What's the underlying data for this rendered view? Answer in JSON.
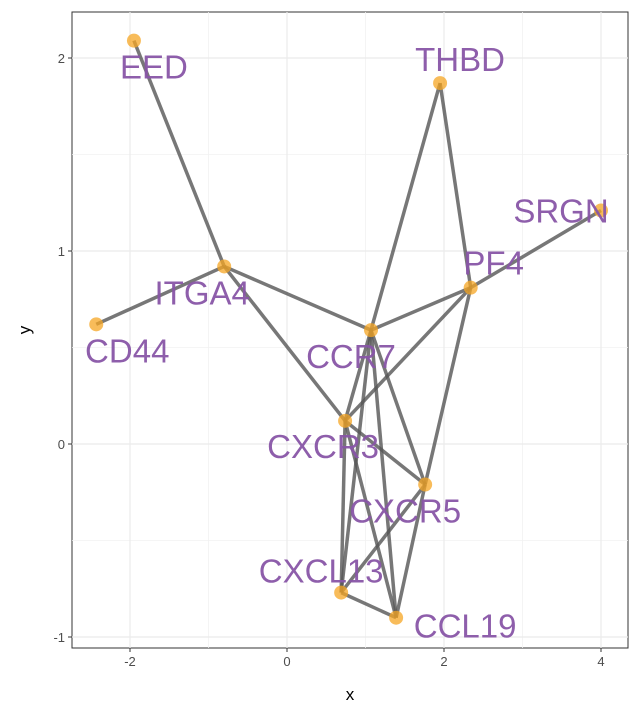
{
  "chart_data": {
    "type": "network",
    "title": "",
    "xlabel": "x",
    "ylabel": "y",
    "xlim": [
      -2.75,
      4.35
    ],
    "ylim": [
      -1.05,
      2.3
    ],
    "xticks": [
      -2,
      0,
      2,
      4
    ],
    "yticks": [
      -1,
      0,
      1,
      2
    ],
    "grid": true,
    "node_color": "#f5a623",
    "label_color": "#8856a7",
    "edge_color": "#555555",
    "nodes": [
      {
        "name": "EED",
        "x": -1.95,
        "y": 2.09
      },
      {
        "name": "THBD",
        "x": 1.95,
        "y": 1.87
      },
      {
        "name": "SRGN",
        "x": 4.0,
        "y": 1.21
      },
      {
        "name": "PF4",
        "x": 2.34,
        "y": 0.81
      },
      {
        "name": "ITGA4",
        "x": -0.8,
        "y": 0.92
      },
      {
        "name": "CD44",
        "x": -2.43,
        "y": 0.62
      },
      {
        "name": "CCR7",
        "x": 1.07,
        "y": 0.59
      },
      {
        "name": "CXCR3",
        "x": 0.74,
        "y": 0.12
      },
      {
        "name": "CXCR5",
        "x": 1.76,
        "y": -0.21
      },
      {
        "name": "CXCL13",
        "x": 0.69,
        "y": -0.77
      },
      {
        "name": "CCL19",
        "x": 1.39,
        "y": -0.9
      }
    ],
    "edges": [
      [
        "EED",
        "ITGA4"
      ],
      [
        "CD44",
        "ITGA4"
      ],
      [
        "ITGA4",
        "CCR7"
      ],
      [
        "ITGA4",
        "CXCR3"
      ],
      [
        "THBD",
        "CCR7"
      ],
      [
        "THBD",
        "PF4"
      ],
      [
        "SRGN",
        "PF4"
      ],
      [
        "PF4",
        "CCR7"
      ],
      [
        "PF4",
        "CXCR3"
      ],
      [
        "PF4",
        "CXCR5"
      ],
      [
        "CCR7",
        "CXCR3"
      ],
      [
        "CCR7",
        "CXCL13"
      ],
      [
        "CCR7",
        "CCL19"
      ],
      [
        "CCR7",
        "CXCR5"
      ],
      [
        "CXCR3",
        "CXCR5"
      ],
      [
        "CXCR3",
        "CXCL13"
      ],
      [
        "CXCR3",
        "CCL19"
      ],
      [
        "CXCR5",
        "CXCL13"
      ],
      [
        "CXCR5",
        "CCL19"
      ],
      [
        "CXCL13",
        "CCL19"
      ]
    ]
  }
}
